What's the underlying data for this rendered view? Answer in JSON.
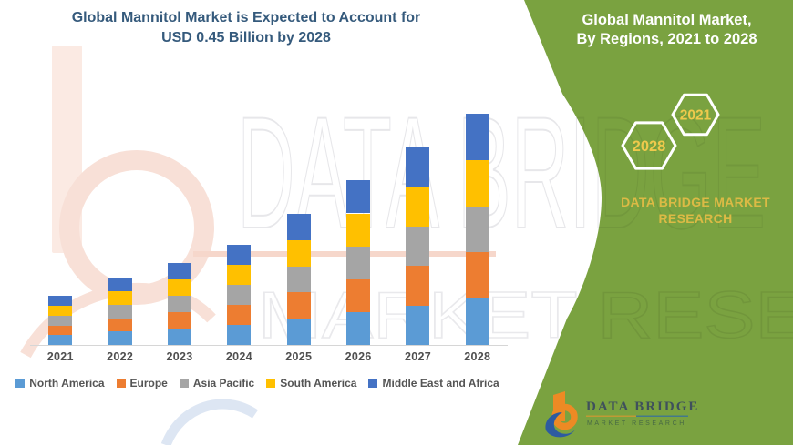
{
  "header": {
    "title_line1": "Global Mannitol Market is Expected to Account for",
    "title_line2": "USD 0.45 Billion by 2028"
  },
  "side_panel": {
    "heading_line1": "Global Mannitol Market,",
    "heading_line2": "By Regions, 2021 to 2028",
    "hexagons": [
      {
        "label": "2028"
      },
      {
        "label": "2021"
      }
    ],
    "brand_line1": "DATA BRIDGE MARKET",
    "brand_line2": "RESEARCH",
    "panel_color": "#7AA240",
    "accent_gold": "#EFC94C"
  },
  "watermark": {
    "big_text": "DATA BRIDGE",
    "sub_text": "MARKET RESEARCH"
  },
  "footer_logo": {
    "name_text": "DATA BRIDGE",
    "sub_text": "MARKET RESEARCH"
  },
  "chart_data": {
    "type": "bar",
    "stacked": true,
    "title": "Global Mannitol Market, By Regions, 2021 to 2028",
    "unit": "USD Billion",
    "categories": [
      "2021",
      "2022",
      "2023",
      "2024",
      "2025",
      "2026",
      "2027",
      "2028"
    ],
    "series": [
      {
        "name": "North America",
        "color": "#5B9BD5",
        "values": [
          0.019,
          0.026,
          0.032,
          0.039,
          0.051,
          0.064,
          0.077,
          0.09
        ]
      },
      {
        "name": "Europe",
        "color": "#ED7D31",
        "values": [
          0.019,
          0.026,
          0.032,
          0.039,
          0.051,
          0.064,
          0.077,
          0.09
        ]
      },
      {
        "name": "Asia Pacific",
        "color": "#A5A5A5",
        "values": [
          0.019,
          0.026,
          0.032,
          0.039,
          0.051,
          0.064,
          0.077,
          0.09
        ]
      },
      {
        "name": "South America",
        "color": "#FFC000",
        "values": [
          0.019,
          0.026,
          0.032,
          0.039,
          0.051,
          0.064,
          0.077,
          0.09
        ]
      },
      {
        "name": "Middle East and Africa",
        "color": "#4472C4",
        "values": [
          0.019,
          0.026,
          0.032,
          0.039,
          0.051,
          0.064,
          0.077,
          0.09
        ]
      }
    ],
    "totals": [
      0.095,
      0.13,
      0.16,
      0.195,
      0.255,
      0.32,
      0.385,
      0.45
    ],
    "ylim": [
      0,
      0.45
    ],
    "gridlines": false,
    "y_axis_visible": false,
    "legend_position": "bottom"
  }
}
